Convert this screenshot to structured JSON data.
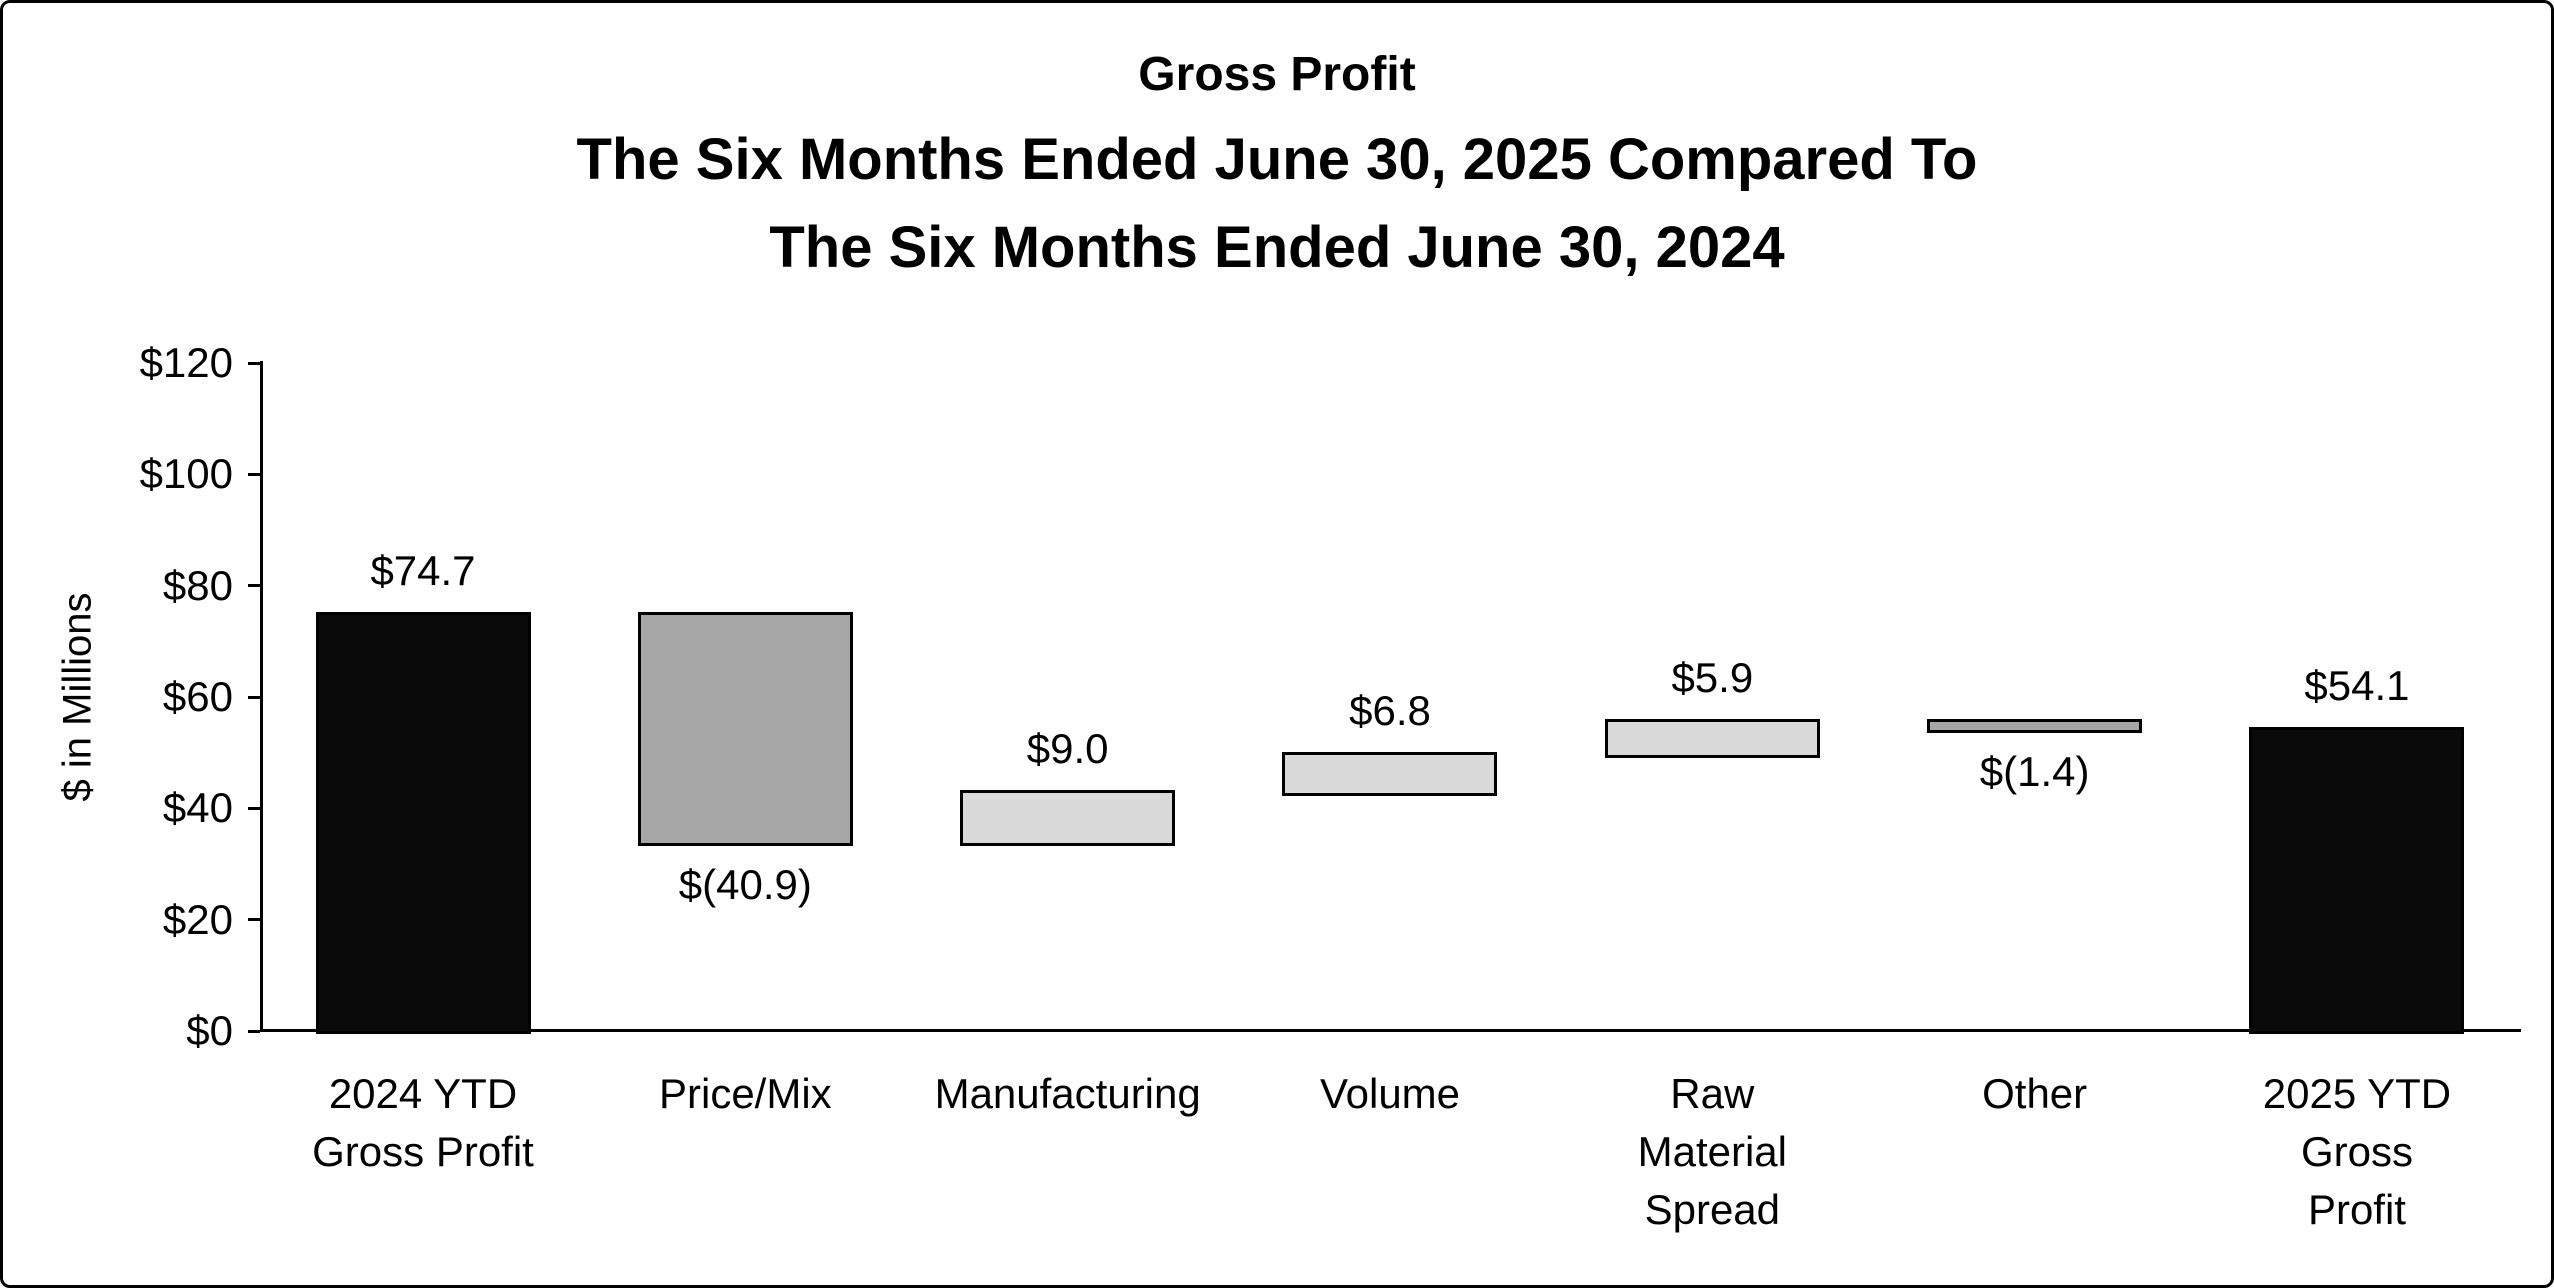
{
  "chart_data": {
    "type": "bar",
    "subtype": "waterfall",
    "title_lines": [
      "Gross Profit",
      "The Six Months Ended June 30, 2025 Compared To",
      "The Six Months Ended June 30, 2024"
    ],
    "ylabel": "$ in Millions",
    "y_axis": {
      "min": 0,
      "max": 120,
      "tick_step": 20,
      "tick_labels": [
        "$0",
        "$20",
        "$40",
        "$60",
        "$80",
        "$100",
        "$120"
      ]
    },
    "grid": false,
    "legend": "none",
    "steps": [
      {
        "category_lines": [
          "2024 YTD",
          "Gross Profit"
        ],
        "value": 74.7,
        "start": 0,
        "end": 74.7,
        "display": "$74.7",
        "label_position": "above",
        "bar_style": "total"
      },
      {
        "category_lines": [
          "Price/Mix"
        ],
        "value": -40.9,
        "start": 74.7,
        "end": 33.8,
        "display": "$(40.9)",
        "label_position": "below",
        "bar_style": "decrease"
      },
      {
        "category_lines": [
          "Manufacturing"
        ],
        "value": 9.0,
        "start": 33.8,
        "end": 42.8,
        "display": "$9.0",
        "label_position": "above",
        "bar_style": "increase"
      },
      {
        "category_lines": [
          "Volume"
        ],
        "value": 6.8,
        "start": 42.8,
        "end": 49.6,
        "display": "$6.8",
        "label_position": "above",
        "bar_style": "increase"
      },
      {
        "category_lines": [
          "Raw",
          "Material",
          "Spread"
        ],
        "value": 5.9,
        "start": 49.6,
        "end": 55.5,
        "display": "$5.9",
        "label_position": "above",
        "bar_style": "increase"
      },
      {
        "category_lines": [
          "Other"
        ],
        "value": -1.4,
        "start": 55.5,
        "end": 54.1,
        "display": "$(1.4)",
        "label_position": "below",
        "bar_style": "decrease"
      },
      {
        "category_lines": [
          "2025 YTD",
          "Gross",
          "Profit"
        ],
        "value": 54.1,
        "start": 0,
        "end": 54.1,
        "display": "$54.1",
        "label_position": "above",
        "bar_style": "total"
      }
    ],
    "colors": {
      "total": "#0a0a0a",
      "increase": "#d9d9d9",
      "decrease": "#a6a6a6",
      "border": "#000000",
      "text": "#000000"
    }
  }
}
